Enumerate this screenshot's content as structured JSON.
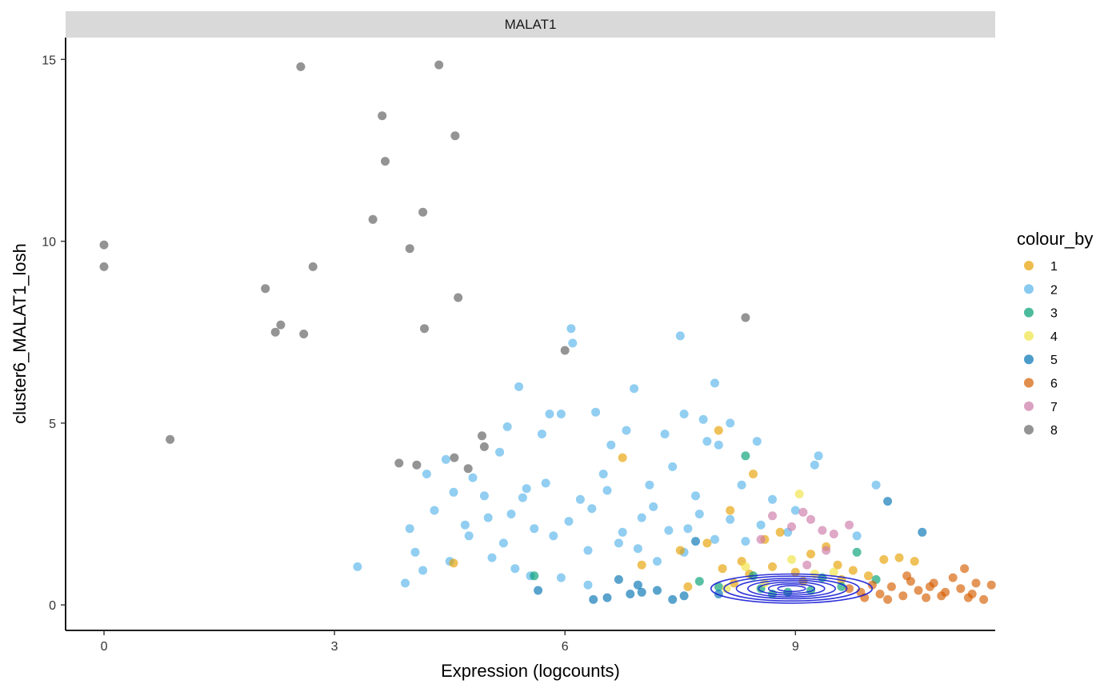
{
  "chart_data": {
    "type": "scatter",
    "facet_label": "MALAT1",
    "xlabel": "Expression (logcounts)",
    "ylabel": "cluster6_MALAT1_losh",
    "xlim": [
      -0.5,
      11.6
    ],
    "ylim": [
      -0.7,
      15.6
    ],
    "x_ticks": [
      0,
      3,
      6,
      9
    ],
    "y_ticks": [
      0,
      5,
      10,
      15
    ],
    "grid": false,
    "legend": {
      "title": "colour_by",
      "placement": "right",
      "entries": [
        {
          "label": "1",
          "color": "#E69F00"
        },
        {
          "label": "2",
          "color": "#56B4E9"
        },
        {
          "label": "3",
          "color": "#009E73"
        },
        {
          "label": "4",
          "color": "#F0E442"
        },
        {
          "label": "5",
          "color": "#0072B2"
        },
        {
          "label": "6",
          "color": "#D55E00"
        },
        {
          "label": "7",
          "color": "#CC79A7"
        },
        {
          "label": "8",
          "color": "#666666"
        }
      ]
    },
    "series": [
      {
        "name": "8",
        "color": "#666666",
        "points": [
          [
            0,
            9.9
          ],
          [
            0,
            9.3
          ],
          [
            0.86,
            4.55
          ],
          [
            2.1,
            8.7
          ],
          [
            2.23,
            7.5
          ],
          [
            2.3,
            7.7
          ],
          [
            2.6,
            7.45
          ],
          [
            2.56,
            14.8
          ],
          [
            2.72,
            9.3
          ],
          [
            3.5,
            10.6
          ],
          [
            3.62,
            13.45
          ],
          [
            3.66,
            12.2
          ],
          [
            3.84,
            3.9
          ],
          [
            3.98,
            9.8
          ],
          [
            4.07,
            3.85
          ],
          [
            4.15,
            10.8
          ],
          [
            4.17,
            7.6
          ],
          [
            4.36,
            14.85
          ],
          [
            4.56,
            4.05
          ],
          [
            4.57,
            12.9
          ],
          [
            4.61,
            8.45
          ],
          [
            4.74,
            3.75
          ],
          [
            4.92,
            4.65
          ],
          [
            4.95,
            4.35
          ],
          [
            6.0,
            7.0
          ],
          [
            8.35,
            7.9
          ]
        ]
      },
      {
        "name": "2",
        "color": "#56B4E9",
        "points": [
          [
            3.3,
            1.05
          ],
          [
            3.92,
            0.6
          ],
          [
            3.98,
            2.1
          ],
          [
            4.05,
            1.45
          ],
          [
            4.15,
            0.95
          ],
          [
            4.2,
            3.6
          ],
          [
            4.3,
            2.6
          ],
          [
            4.45,
            4.0
          ],
          [
            4.55,
            3.1
          ],
          [
            4.7,
            2.2
          ],
          [
            4.8,
            3.5
          ],
          [
            4.95,
            3.0
          ],
          [
            5.05,
            1.3
          ],
          [
            5.15,
            4.2
          ],
          [
            5.25,
            4.9
          ],
          [
            5.3,
            2.5
          ],
          [
            5.4,
            6.0
          ],
          [
            5.5,
            3.2
          ],
          [
            5.6,
            2.1
          ],
          [
            5.7,
            4.7
          ],
          [
            5.8,
            5.25
          ],
          [
            5.85,
            1.9
          ],
          [
            5.95,
            5.25
          ],
          [
            6.08,
            7.6
          ],
          [
            6.1,
            7.2
          ],
          [
            6.2,
            2.9
          ],
          [
            6.3,
            1.5
          ],
          [
            6.4,
            5.3
          ],
          [
            6.5,
            3.6
          ],
          [
            6.6,
            4.4
          ],
          [
            6.7,
            1.7
          ],
          [
            6.8,
            4.8
          ],
          [
            6.9,
            5.95
          ],
          [
            7.0,
            2.4
          ],
          [
            7.1,
            3.3
          ],
          [
            7.2,
            1.2
          ],
          [
            7.3,
            4.7
          ],
          [
            7.4,
            3.8
          ],
          [
            7.5,
            7.4
          ],
          [
            7.55,
            5.25
          ],
          [
            7.6,
            2.1
          ],
          [
            7.7,
            3.0
          ],
          [
            7.8,
            5.1
          ],
          [
            7.85,
            4.5
          ],
          [
            7.95,
            6.1
          ],
          [
            8.0,
            4.4
          ],
          [
            8.15,
            5.0
          ],
          [
            8.3,
            3.3
          ],
          [
            8.5,
            4.5
          ],
          [
            8.7,
            2.9
          ],
          [
            8.9,
            2.0
          ],
          [
            9.0,
            2.6
          ],
          [
            9.25,
            3.85
          ],
          [
            9.3,
            4.1
          ],
          [
            10.05,
            3.3
          ],
          [
            9.8,
            1.9
          ],
          [
            5.35,
            1.0
          ],
          [
            5.55,
            0.8
          ],
          [
            5.95,
            0.75
          ],
          [
            6.3,
            0.55
          ],
          [
            4.5,
            1.2
          ],
          [
            4.75,
            1.9
          ],
          [
            5.0,
            2.4
          ],
          [
            5.2,
            1.7
          ],
          [
            5.45,
            2.95
          ],
          [
            5.75,
            3.35
          ],
          [
            6.05,
            2.3
          ],
          [
            6.35,
            2.65
          ],
          [
            6.55,
            3.15
          ],
          [
            6.75,
            2.0
          ],
          [
            6.95,
            1.55
          ],
          [
            7.15,
            2.7
          ],
          [
            7.35,
            2.05
          ],
          [
            7.55,
            1.45
          ],
          [
            7.75,
            2.5
          ],
          [
            7.95,
            1.8
          ],
          [
            8.15,
            2.35
          ],
          [
            8.35,
            1.75
          ],
          [
            8.55,
            2.2
          ]
        ]
      },
      {
        "name": "1",
        "color": "#E69F00",
        "points": [
          [
            4.55,
            1.15
          ],
          [
            6.75,
            4.05
          ],
          [
            7.0,
            1.1
          ],
          [
            7.5,
            1.5
          ],
          [
            7.85,
            1.7
          ],
          [
            8.0,
            4.8
          ],
          [
            8.15,
            2.6
          ],
          [
            8.3,
            1.2
          ],
          [
            8.45,
            3.6
          ],
          [
            8.6,
            1.8
          ],
          [
            8.8,
            2.0
          ],
          [
            9.0,
            0.9
          ],
          [
            9.2,
            1.4
          ],
          [
            9.4,
            1.6
          ],
          [
            9.55,
            1.1
          ],
          [
            9.75,
            0.95
          ],
          [
            9.95,
            0.8
          ],
          [
            10.15,
            1.25
          ],
          [
            10.35,
            1.3
          ],
          [
            10.55,
            1.2
          ],
          [
            8.2,
            0.6
          ],
          [
            8.7,
            1.05
          ],
          [
            9.1,
            0.65
          ],
          [
            9.6,
            0.7
          ],
          [
            7.6,
            0.5
          ],
          [
            8.05,
            1.0
          ],
          [
            8.4,
            0.85
          ]
        ]
      },
      {
        "name": "3",
        "color": "#009E73",
        "points": [
          [
            5.6,
            0.8
          ],
          [
            8.35,
            4.1
          ],
          [
            8.0,
            0.5
          ],
          [
            8.45,
            0.8
          ],
          [
            8.9,
            0.35
          ],
          [
            9.2,
            0.4
          ],
          [
            9.6,
            0.5
          ],
          [
            9.8,
            1.45
          ],
          [
            10.05,
            0.7
          ],
          [
            8.7,
            0.3
          ],
          [
            9.35,
            0.75
          ],
          [
            7.75,
            0.65
          ],
          [
            8.55,
            0.45
          ]
        ]
      },
      {
        "name": "4",
        "color": "#F0E442",
        "points": [
          [
            8.35,
            1.05
          ],
          [
            8.6,
            0.6
          ],
          [
            8.95,
            1.25
          ],
          [
            9.25,
            0.85
          ],
          [
            9.05,
            3.05
          ],
          [
            8.1,
            0.45
          ],
          [
            9.5,
            0.9
          ]
        ]
      },
      {
        "name": "5",
        "color": "#0072B2",
        "points": [
          [
            6.37,
            0.15
          ],
          [
            6.55,
            0.2
          ],
          [
            6.7,
            0.7
          ],
          [
            6.85,
            0.3
          ],
          [
            7.0,
            0.35
          ],
          [
            7.2,
            0.4
          ],
          [
            7.4,
            0.15
          ],
          [
            7.55,
            0.25
          ],
          [
            7.7,
            1.75
          ],
          [
            8.0,
            0.3
          ],
          [
            10.2,
            2.85
          ],
          [
            10.65,
            2.0
          ],
          [
            5.65,
            0.4
          ],
          [
            6.95,
            0.55
          ]
        ]
      },
      {
        "name": "6",
        "color": "#D55E00",
        "points": [
          [
            9.7,
            0.45
          ],
          [
            9.85,
            0.35
          ],
          [
            10.0,
            0.55
          ],
          [
            10.1,
            0.3
          ],
          [
            10.25,
            0.5
          ],
          [
            10.4,
            0.25
          ],
          [
            10.5,
            0.65
          ],
          [
            10.6,
            0.4
          ],
          [
            10.7,
            0.2
          ],
          [
            10.8,
            0.6
          ],
          [
            10.95,
            0.35
          ],
          [
            11.05,
            0.75
          ],
          [
            11.15,
            0.45
          ],
          [
            11.25,
            0.2
          ],
          [
            11.35,
            0.6
          ],
          [
            11.45,
            0.15
          ],
          [
            11.55,
            0.55
          ],
          [
            10.2,
            0.15
          ],
          [
            10.45,
            0.8
          ],
          [
            10.75,
            0.5
          ],
          [
            11.2,
            1.0
          ],
          [
            11.3,
            0.3
          ],
          [
            9.9,
            0.2
          ],
          [
            10.9,
            0.25
          ]
        ]
      },
      {
        "name": "7",
        "color": "#CC79A7",
        "points": [
          [
            8.7,
            2.45
          ],
          [
            8.95,
            2.15
          ],
          [
            9.1,
            2.55
          ],
          [
            9.2,
            2.35
          ],
          [
            9.35,
            2.05
          ],
          [
            9.5,
            1.95
          ],
          [
            9.7,
            2.2
          ],
          [
            9.4,
            1.5
          ],
          [
            8.55,
            1.8
          ],
          [
            9.15,
            1.1
          ]
        ]
      }
    ],
    "density_contours": {
      "color": "#1a1fd6",
      "center": [
        8.95,
        0.45
      ],
      "levels": [
        [
          1.05,
          0.4
        ],
        [
          0.88,
          0.34
        ],
        [
          0.72,
          0.28
        ],
        [
          0.57,
          0.23
        ],
        [
          0.43,
          0.18
        ],
        [
          0.3,
          0.13
        ],
        [
          0.18,
          0.08
        ]
      ]
    }
  }
}
